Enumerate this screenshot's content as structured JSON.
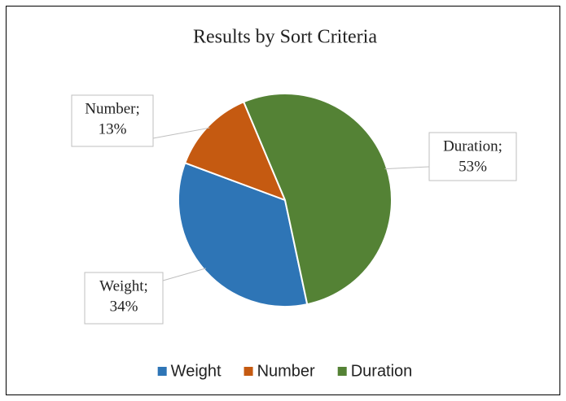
{
  "chart_data": {
    "type": "pie",
    "title": "Results by Sort Criteria",
    "categories": [
      "Weight",
      "Number",
      "Duration"
    ],
    "values": [
      34,
      13,
      53
    ],
    "value_labels": [
      "34%",
      "13%",
      "53%"
    ],
    "data_label_names": [
      "Weight;",
      "Number;",
      "Duration;"
    ],
    "colors": [
      "#2e75b6",
      "#c55a11",
      "#548235"
    ],
    "start_angle": 168,
    "legend": "bottom"
  }
}
